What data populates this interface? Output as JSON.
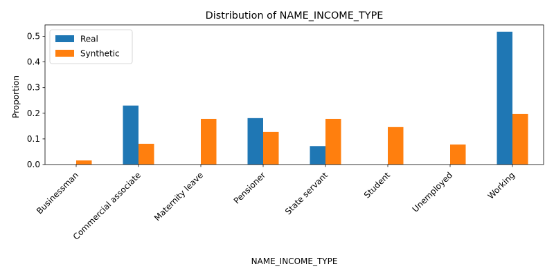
{
  "chart_data": {
    "type": "bar",
    "title": "Distribution of NAME_INCOME_TYPE",
    "xlabel": "NAME_INCOME_TYPE",
    "ylabel": "Proportion",
    "categories": [
      "Businessman",
      "Commercial associate",
      "Maternity leave",
      "Pensioner",
      "State servant",
      "Student",
      "Unemployed",
      "Working"
    ],
    "series": [
      {
        "name": "Real",
        "color": "#1f77b4",
        "values": [
          0,
          0.23,
          0,
          0.181,
          0.072,
          0,
          0,
          0.518
        ]
      },
      {
        "name": "Synthetic",
        "color": "#ff7f0e",
        "values": [
          0.016,
          0.081,
          0.178,
          0.127,
          0.178,
          0.146,
          0.078,
          0.197
        ]
      }
    ],
    "ylim": [
      0,
      0.5445
    ],
    "yticks": [
      "0.0",
      "0.1",
      "0.2",
      "0.3",
      "0.4",
      "0.5"
    ],
    "legend_position": "top-left",
    "grid": false
  }
}
